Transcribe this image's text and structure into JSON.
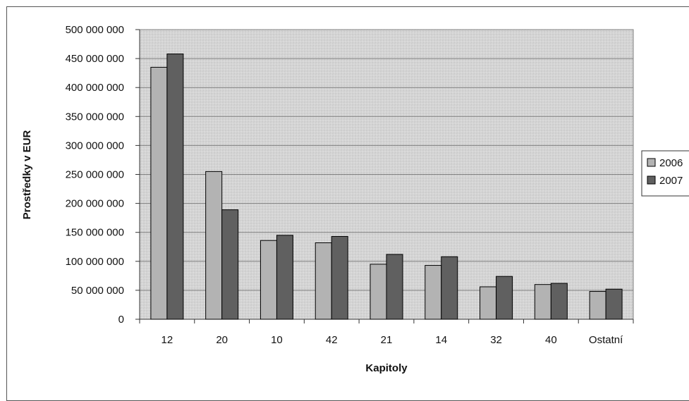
{
  "chart_data": {
    "type": "bar",
    "title": "",
    "xlabel": "Kapitoly",
    "ylabel": "Prostředky v EUR",
    "categories": [
      "12",
      "20",
      "10",
      "42",
      "21",
      "14",
      "32",
      "40",
      "Ostatní"
    ],
    "series": [
      {
        "name": "2006",
        "values": [
          435000000,
          255000000,
          136000000,
          132000000,
          95000000,
          93000000,
          56000000,
          60000000,
          48000000
        ]
      },
      {
        "name": "2007",
        "values": [
          458000000,
          189000000,
          145000000,
          143000000,
          112000000,
          108000000,
          74000000,
          62000000,
          52000000
        ]
      }
    ],
    "ylim": [
      0,
      500000000
    ],
    "yticks": [
      "0",
      "50 000 000",
      "100 000 000",
      "150 000 000",
      "200 000 000",
      "250 000 000",
      "300 000 000",
      "350 000 000",
      "400 000 000",
      "450 000 000",
      "500 000 000"
    ],
    "grid": true,
    "legend_position": "right",
    "colors": {
      "2006": "#b3b3b3",
      "2007": "#606060",
      "plot_background": "#d9d9d9",
      "gridline": "#808080"
    }
  }
}
